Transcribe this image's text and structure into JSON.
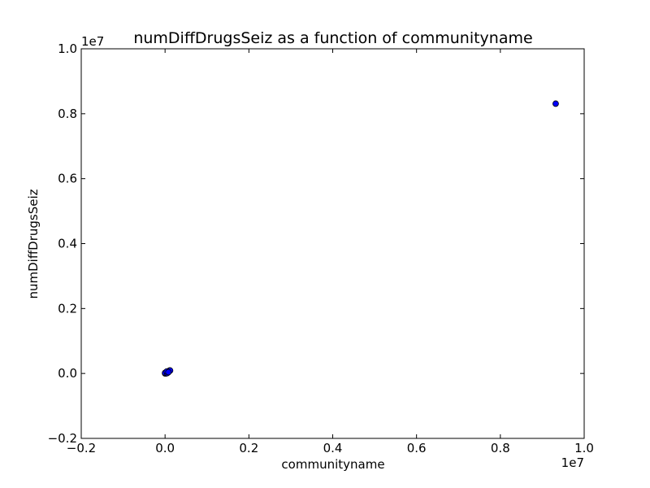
{
  "chart_data": {
    "type": "scatter",
    "title": "numDiffDrugsSeiz as a function of communityname",
    "xlabel": "communityname",
    "ylabel": "numDiffDrugsSeiz",
    "x_offset_label": "1e7",
    "y_offset_label": "1e7",
    "xlim": [
      -0.2,
      1.0
    ],
    "ylim": [
      -0.2,
      1.0
    ],
    "xticks": [
      -0.2,
      0.0,
      0.2,
      0.4,
      0.6,
      0.8,
      1.0
    ],
    "yticks": [
      -0.2,
      0.0,
      0.2,
      0.4,
      0.6,
      0.8,
      1.0
    ],
    "xtick_labels": [
      "−0.2",
      "0.0",
      "0.2",
      "0.4",
      "0.6",
      "0.8",
      "1.0"
    ],
    "ytick_labels": [
      "−0.2",
      "0.0",
      "0.2",
      "0.4",
      "0.6",
      "0.8",
      "1.0"
    ],
    "grid": false,
    "marker_color": "#0000ff",
    "marker_edge": "#000000",
    "points": [
      {
        "x": 0.0,
        "y": 0.0
      },
      {
        "x": 0.001,
        "y": 0.001
      },
      {
        "x": 0.002,
        "y": 0.002
      },
      {
        "x": 0.003,
        "y": 0.003
      },
      {
        "x": 0.004,
        "y": 0.004
      },
      {
        "x": 0.005,
        "y": 0.004
      },
      {
        "x": 0.006,
        "y": 0.005
      },
      {
        "x": 0.007,
        "y": 0.006
      },
      {
        "x": 0.008,
        "y": 0.007
      },
      {
        "x": 0.009,
        "y": 0.007
      },
      {
        "x": 0.01,
        "y": 0.008
      },
      {
        "x": 0.011,
        "y": 0.009
      },
      {
        "x": 0.012,
        "y": 0.009
      },
      {
        "x": 0.002,
        "y": 0.0
      },
      {
        "x": 0.0,
        "y": 0.002
      },
      {
        "x": 0.005,
        "y": 0.001
      },
      {
        "x": 0.004,
        "y": 0.006
      },
      {
        "x": 0.008,
        "y": 0.004
      },
      {
        "x": 0.932,
        "y": 0.831
      }
    ]
  }
}
